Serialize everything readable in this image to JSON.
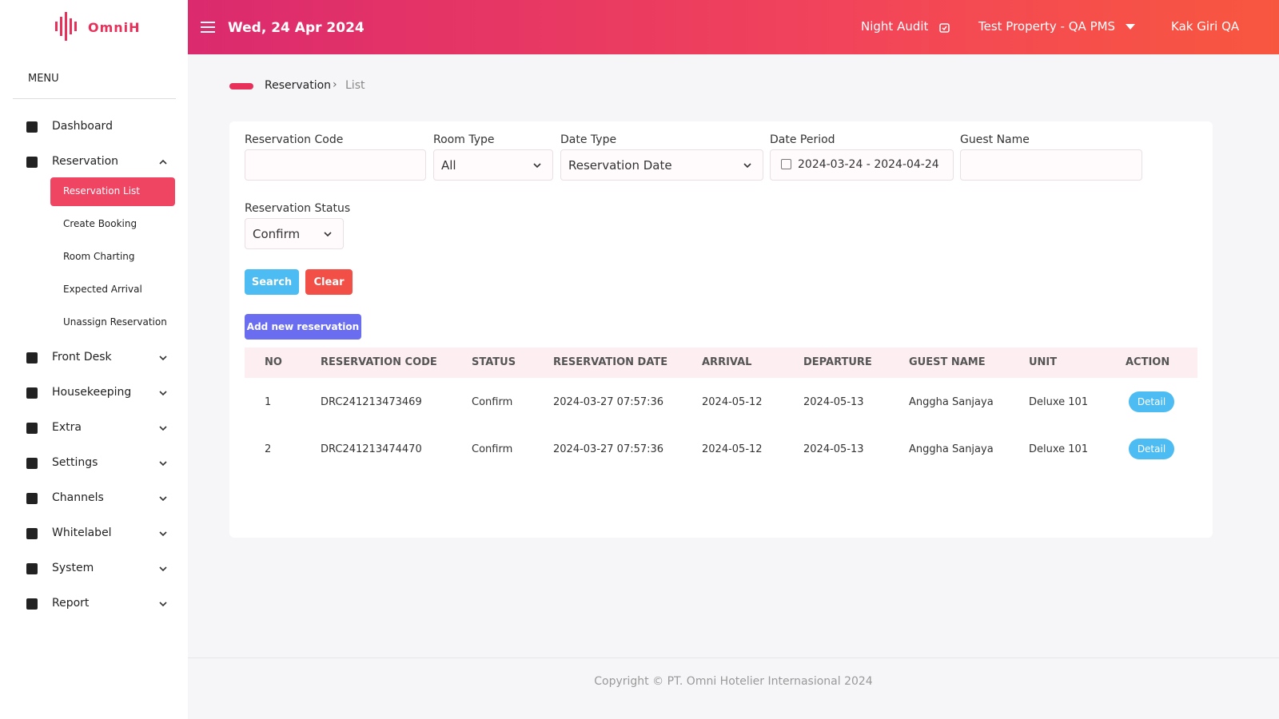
{
  "sidebar": {
    "logo": "OmniH",
    "menu_label": "MENU",
    "items": [
      {
        "label": "Dashboard"
      },
      {
        "label": "Reservation",
        "children": [
          "Reservation List",
          "Create Booking",
          "Room Charting",
          "Expected Arrival",
          "Unassign Reservation"
        ]
      },
      {
        "label": "Front Desk"
      },
      {
        "label": "Housekeeping"
      },
      {
        "label": "Extra"
      },
      {
        "label": "Settings"
      },
      {
        "label": "Channels"
      },
      {
        "label": "Whitelabel"
      },
      {
        "label": "System"
      },
      {
        "label": "Report"
      }
    ]
  },
  "header": {
    "date": "Wed, 24 Apr 2024",
    "night_audit": "Night Audit",
    "property": "Test Property - QA PMS",
    "user": "Kak Giri QA"
  },
  "breadcrumb": [
    "Reservation",
    "List"
  ],
  "filters": [
    {
      "label": "Reservation Code"
    },
    {
      "label": "Room Type",
      "value": "All"
    },
    {
      "label": "Date Type",
      "value": "Reservation Date"
    },
    {
      "label": "Date Period",
      "value": "2024-03-24 - 2024-04-24"
    },
    {
      "label": "Guest Name"
    },
    {
      "label": "Reservation Status",
      "value": "Confirm"
    }
  ],
  "buttons": {
    "search": "Search",
    "clear": "Clear",
    "add": "Add new reservation"
  },
  "table": {
    "columns": [
      "NO",
      "RESERVATION CODE",
      "STATUS",
      "RESERVATION DATE",
      "ARRIVAL",
      "DEPARTURE",
      "GUEST NAME",
      "UNIT",
      "ACTION"
    ],
    "rows": [
      [
        1,
        "DRC241213473469",
        "Confirm",
        "2024-03-27 07:57:36",
        "2024-05-12",
        "2024-05-13",
        "Anggha Sanjaya",
        "Deluxe 101",
        "Detail"
      ],
      [
        2,
        "DRC241213474470",
        "Confirm",
        "2024-03-27 07:57:36",
        "2024-05-12",
        "2024-05-13",
        "Anggha Sanjaya",
        "Deluxe 101",
        "Detail"
      ]
    ]
  },
  "footer": "Copyright © PT. Omni Hotelier Internasional 2024"
}
